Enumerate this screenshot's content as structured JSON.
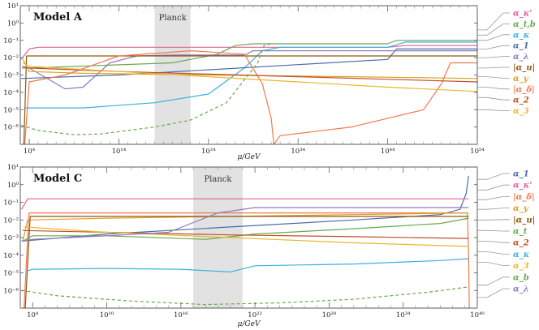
{
  "chart_data": [
    {
      "type": "line",
      "title": "Model A",
      "band_label": "Planck",
      "band": [
        18,
        22
      ],
      "xlabel": "μ/GeV",
      "xlim": [
        3,
        54
      ],
      "ylim": [
        -7,
        1
      ],
      "x_ticks": [
        {
          "label": "10⁴",
          "value": 4
        },
        {
          "label": "10¹⁴",
          "value": 14
        },
        {
          "label": "10²⁴",
          "value": 24
        },
        {
          "label": "10³⁴",
          "value": 34
        },
        {
          "label": "10⁴⁴",
          "value": 44
        },
        {
          "label": "10⁵⁴",
          "value": 54
        }
      ],
      "y_ticks": [
        {
          "label": "10¹",
          "value": 1
        },
        {
          "label": "10⁰",
          "value": 0
        },
        {
          "label": "10⁻¹",
          "value": -1
        },
        {
          "label": "10⁻²",
          "value": -2
        },
        {
          "label": "10⁻³",
          "value": -3
        },
        {
          "label": "10⁻⁴",
          "value": -4
        },
        {
          "label": "10⁻⁵",
          "value": -5
        },
        {
          "label": "10⁻⁶",
          "value": -6
        }
      ],
      "series": [
        {
          "name": "α_κ'",
          "color": "#e0609a",
          "dashed": false,
          "end": -0.4,
          "x": [
            3.1,
            4,
            5,
            10,
            30,
            44,
            46,
            54
          ],
          "y": [
            -2.1,
            -1.5,
            -1.4,
            -1.4,
            -1.4,
            -1.4,
            -1.3,
            -1.3
          ]
        },
        {
          "name": "α_t,b",
          "color": "#6aa84f",
          "dashed": false,
          "end": -0.7,
          "x": [
            3.6,
            4,
            20,
            25,
            27,
            29,
            32,
            44,
            45,
            54
          ],
          "y": [
            -2.6,
            -2.6,
            -2.3,
            -1.8,
            -1.3,
            -1.2,
            -1.2,
            -1.2,
            -1.0,
            -1.0
          ]
        },
        {
          "name": "α_κ",
          "color": "#3ab0de",
          "dashed": false,
          "end": -1.0,
          "x": [
            3.5,
            4,
            10,
            18,
            24,
            28,
            30,
            32,
            44,
            46,
            54
          ],
          "y": [
            -4.9,
            -4.9,
            -4.9,
            -4.6,
            -4.1,
            -2.6,
            -1.6,
            -1.4,
            -1.4,
            -1.1,
            -1.1
          ]
        },
        {
          "name": "α_1",
          "color": "#4a6ea8",
          "dashed": false,
          "end": -1.5,
          "x": [
            3.1,
            14,
            24,
            34,
            44,
            45,
            54
          ],
          "y": [
            -3.2,
            -3.0,
            -2.7,
            -2.4,
            -2.1,
            -1.5,
            -1.5
          ]
        },
        {
          "name": "α_λ",
          "color": "#8d7bbf",
          "dashed": false,
          "end": -2.0,
          "x": [
            3.2,
            4,
            8,
            10,
            13,
            16,
            20,
            28,
            29,
            32,
            44,
            54
          ],
          "y": [
            -2.6,
            -2.6,
            -3.8,
            -3.7,
            -2.3,
            -1.9,
            -1.85,
            -1.85,
            -1.6,
            -1.6,
            -1.6,
            -1.6
          ]
        },
        {
          "name": "|α_u|",
          "color": "#8a5a10",
          "dashed": false,
          "end": -2.6,
          "x": [
            3.4,
            3.7,
            4,
            20,
            44,
            54
          ],
          "y": [
            -7.0,
            -1.9,
            -1.9,
            -1.9,
            -1.9,
            -1.9
          ]
        },
        {
          "name": "α_y",
          "color": "#e0a020",
          "dashed": false,
          "end": -3.1,
          "x": [
            3.3,
            4,
            10,
            24,
            40,
            54
          ],
          "y": [
            -2.1,
            -2.8,
            -2.9,
            -3.0,
            -3.1,
            -3.2
          ]
        },
        {
          "name": "|α_δ|",
          "color": "#f07850",
          "dashed": false,
          "end": -3.7,
          "x": [
            3.5,
            4,
            8,
            14,
            22,
            28,
            30,
            31,
            31.3,
            32,
            40,
            48,
            50,
            51,
            54
          ],
          "y": [
            -7.0,
            -3.4,
            -3.0,
            -1.9,
            -1.6,
            -1.8,
            -3.5,
            -5.5,
            -7.0,
            -6.5,
            -6.0,
            -5.0,
            -3.5,
            -2.3,
            -2.3
          ]
        },
        {
          "name": "α_2",
          "color": "#c0502a",
          "dashed": false,
          "end": -4.3,
          "x": [
            3.2,
            4,
            14,
            24,
            34,
            44,
            54
          ],
          "y": [
            -2.5,
            -2.6,
            -2.8,
            -2.95,
            -3.1,
            -3.25,
            -3.4
          ]
        },
        {
          "name": "α_3",
          "color": "#e8b830",
          "dashed": false,
          "end": -5.0,
          "x": [
            3.3,
            4,
            14,
            24,
            34,
            44,
            54
          ],
          "y": [
            -2.3,
            -2.5,
            -2.8,
            -3.1,
            -3.4,
            -3.7,
            -3.95
          ]
        },
        {
          "name": "",
          "color": "#6aa84f",
          "dashed": true,
          "end": null,
          "x": [
            3.1,
            5,
            9,
            12,
            18,
            22,
            26,
            29.5,
            30.2,
            31
          ],
          "y": [
            -5.9,
            -6.2,
            -6.45,
            -6.4,
            -6.0,
            -5.6,
            -4.6,
            -2.3,
            -1.3,
            -1.2
          ]
        }
      ]
    },
    {
      "type": "line",
      "title": "Model C",
      "band_label": "Planck",
      "band": [
        17,
        21
      ],
      "xlabel": "μ/GeV",
      "xlim": [
        3,
        40
      ],
      "ylim": [
        -7,
        1
      ],
      "x_ticks": [
        {
          "label": "10⁴",
          "value": 4
        },
        {
          "label": "10¹⁰",
          "value": 10
        },
        {
          "label": "10¹⁶",
          "value": 16
        },
        {
          "label": "10²²",
          "value": 22
        },
        {
          "label": "10²⁸",
          "value": 28
        },
        {
          "label": "10³⁴",
          "value": 34
        },
        {
          "label": "10⁴⁰",
          "value": 40
        }
      ],
      "y_ticks": [
        {
          "label": "10¹",
          "value": 1
        },
        {
          "label": "10⁰",
          "value": 0
        },
        {
          "label": "10⁻¹",
          "value": -1
        },
        {
          "label": "10⁻²",
          "value": -2
        },
        {
          "label": "10⁻³",
          "value": -3
        },
        {
          "label": "10⁻⁴",
          "value": -4
        },
        {
          "label": "10⁻⁵",
          "value": -5
        },
        {
          "label": "10⁻⁶",
          "value": -6
        }
      ],
      "series": [
        {
          "name": "α_1",
          "color": "#4a6ea8",
          "dashed": false,
          "end": 0.3,
          "x": [
            3.1,
            10,
            20,
            30,
            37,
            38.6,
            39.1,
            39.3
          ],
          "y": [
            -3.2,
            -2.8,
            -2.4,
            -2.0,
            -1.7,
            -1.4,
            -0.5,
            0.5
          ]
        },
        {
          "name": "α_κ'",
          "color": "#e0609a",
          "dashed": false,
          "end": -0.3,
          "x": [
            3.1,
            3.6,
            10,
            20,
            30,
            39.3
          ],
          "y": [
            -1.4,
            -0.8,
            -0.8,
            -0.8,
            -0.8,
            -0.8
          ]
        },
        {
          "name": "|α_δ|",
          "color": "#f07850",
          "dashed": false,
          "end": -0.85,
          "x": [
            3.3,
            3.7,
            10,
            20,
            30,
            39.2,
            39.3,
            39.35
          ],
          "y": [
            -7.0,
            -1.6,
            -1.6,
            -1.6,
            -1.6,
            -1.6,
            -4.0,
            -7.0
          ]
        },
        {
          "name": "α_y",
          "color": "#e0a020",
          "dashed": false,
          "end": -1.4,
          "x": [
            3.2,
            3.6,
            10,
            20,
            30,
            39.3
          ],
          "y": [
            -3.2,
            -2.0,
            -1.9,
            -1.8,
            -1.7,
            -1.6
          ]
        },
        {
          "name": "|α_u|",
          "color": "#8a5a10",
          "dashed": false,
          "end": -2.0,
          "x": [
            3.4,
            3.8,
            10,
            20,
            30,
            39.3
          ],
          "y": [
            -7.0,
            -1.8,
            -1.8,
            -1.8,
            -1.8,
            -1.8
          ]
        },
        {
          "name": "α_t",
          "color": "#6aa84f",
          "dashed": false,
          "end": -2.6,
          "x": [
            3.2,
            4,
            10,
            18,
            22,
            30,
            37,
            39.3
          ],
          "y": [
            -3.2,
            -2.9,
            -2.9,
            -3.1,
            -2.8,
            -2.5,
            -2.2,
            -1.9
          ]
        },
        {
          "name": "α_2",
          "color": "#c0502a",
          "dashed": false,
          "end": -3.2,
          "x": [
            3.2,
            10,
            20,
            30,
            39.3
          ],
          "y": [
            -2.6,
            -2.7,
            -2.85,
            -2.95,
            -3.05
          ]
        },
        {
          "name": "α_κ",
          "color": "#3ab0de",
          "dashed": false,
          "end": -3.8,
          "x": [
            3.5,
            4,
            10,
            16,
            20,
            22,
            30,
            37,
            39.3
          ],
          "y": [
            -4.9,
            -4.8,
            -4.75,
            -4.8,
            -4.95,
            -4.6,
            -4.5,
            -4.3,
            -4.2
          ]
        },
        {
          "name": "α_3",
          "color": "#e8b830",
          "dashed": false,
          "end": -4.4,
          "x": [
            3.3,
            10,
            20,
            30,
            39.3
          ],
          "y": [
            -2.4,
            -2.7,
            -3.0,
            -3.3,
            -3.5
          ]
        },
        {
          "name": "α_b",
          "color": "#6aa84f",
          "dashed": true,
          "end": -5.7,
          "x": [
            3.1,
            6,
            12,
            18,
            24,
            30,
            36,
            39.3
          ],
          "y": [
            -6.0,
            -6.3,
            -6.6,
            -6.8,
            -6.7,
            -6.5,
            -6.1,
            -5.8
          ]
        },
        {
          "name": "α_λ",
          "color": "#8d7bbf",
          "dashed": false,
          "end": -6.4,
          "x": [
            3.1,
            4,
            10,
            15,
            19,
            22,
            30,
            39.3
          ],
          "y": [
            -3.2,
            -3.1,
            -2.9,
            -2.7,
            -1.6,
            -1.3,
            -1.3,
            -1.3
          ]
        }
      ]
    }
  ]
}
